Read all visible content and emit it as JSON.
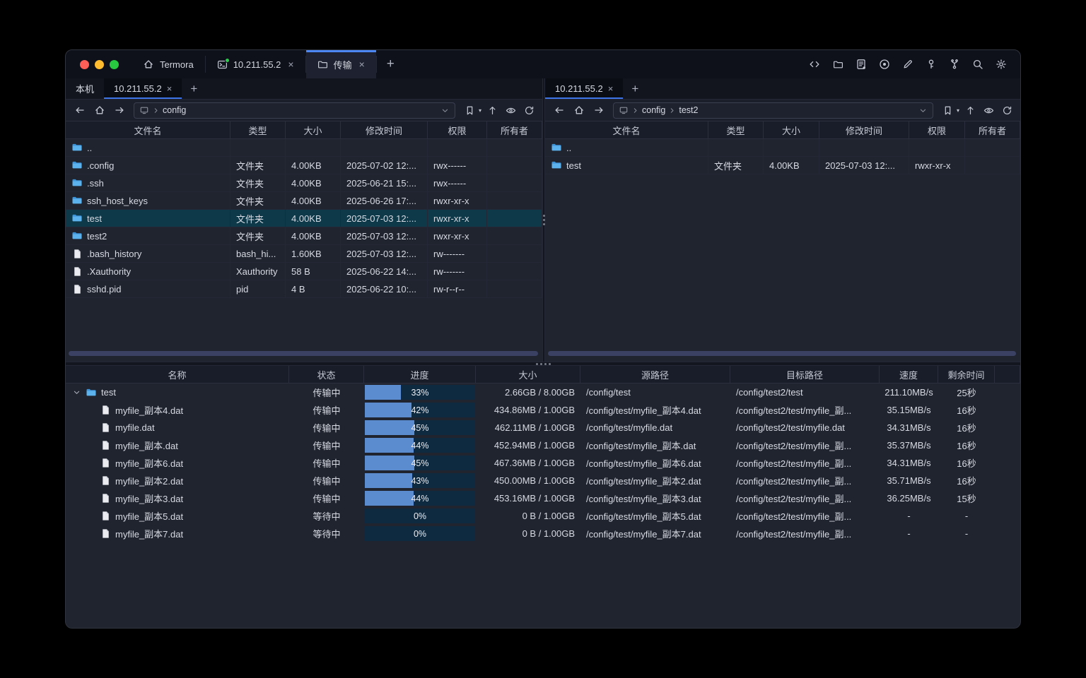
{
  "glyphs": {
    "close": "×",
    "plus": "+",
    "caret": "▾"
  },
  "colors": {
    "accent": "#3d74e8",
    "active_tab_top": "#4b86f2",
    "selected_row": "#0e3949",
    "progress_fill": "#5b8cd0",
    "progress_track": "#0d2a40",
    "traffic_red": "#ff5f57",
    "traffic_yellow": "#febc2e",
    "traffic_green": "#28c840",
    "folder_icon": "#4aa3e0"
  },
  "titlebar": {
    "app": {
      "icon": "home",
      "label": "Termora"
    },
    "session_tab": {
      "icon": "terminal",
      "label": "10.211.55.2"
    },
    "transfer_tab": {
      "icon": "folder-o",
      "label": "传输"
    },
    "actions": [
      "code",
      "folder-o",
      "journal",
      "record",
      "pencil",
      "key",
      "fork",
      "search",
      "gear"
    ]
  },
  "panels": [
    {
      "tabs": [
        {
          "label": "本机",
          "active": false,
          "closable": false
        },
        {
          "label": "10.211.55.2",
          "active": true,
          "closable": true
        }
      ],
      "breadcrumb": [
        "config"
      ],
      "headers": [
        "文件名",
        "类型",
        "大小",
        "修改时间",
        "权限",
        "所有者"
      ],
      "rows": [
        {
          "icon": "folder",
          "name": "..",
          "type": "",
          "size": "",
          "mtime": "",
          "perm": "",
          "owner": ""
        },
        {
          "icon": "folder",
          "name": ".config",
          "type": "文件夹",
          "size": "4.00KB",
          "mtime": "2025-07-02 12:...",
          "perm": "rwx------",
          "owner": ""
        },
        {
          "icon": "folder",
          "name": ".ssh",
          "type": "文件夹",
          "size": "4.00KB",
          "mtime": "2025-06-21 15:...",
          "perm": "rwx------",
          "owner": ""
        },
        {
          "icon": "folder",
          "name": "ssh_host_keys",
          "type": "文件夹",
          "size": "4.00KB",
          "mtime": "2025-06-26 17:...",
          "perm": "rwxr-xr-x",
          "owner": ""
        },
        {
          "icon": "folder",
          "name": "test",
          "type": "文件夹",
          "size": "4.00KB",
          "mtime": "2025-07-03 12:...",
          "perm": "rwxr-xr-x",
          "owner": "",
          "selected": true
        },
        {
          "icon": "folder",
          "name": "test2",
          "type": "文件夹",
          "size": "4.00KB",
          "mtime": "2025-07-03 12:...",
          "perm": "rwxr-xr-x",
          "owner": ""
        },
        {
          "icon": "file",
          "name": ".bash_history",
          "type": "bash_hi...",
          "size": "1.60KB",
          "mtime": "2025-07-03 12:...",
          "perm": "rw-------",
          "owner": ""
        },
        {
          "icon": "file",
          "name": ".Xauthority",
          "type": "Xauthority",
          "size": "58 B",
          "mtime": "2025-06-22 14:...",
          "perm": "rw-------",
          "owner": ""
        },
        {
          "icon": "file",
          "name": "sshd.pid",
          "type": "pid",
          "size": "4 B",
          "mtime": "2025-06-22 10:...",
          "perm": "rw-r--r--",
          "owner": ""
        }
      ]
    },
    {
      "tabs": [
        {
          "label": "10.211.55.2",
          "active": true,
          "closable": true
        }
      ],
      "breadcrumb": [
        "config",
        "test2"
      ],
      "headers": [
        "文件名",
        "类型",
        "大小",
        "修改时间",
        "权限",
        "所有者"
      ],
      "rows": [
        {
          "icon": "folder",
          "name": "..",
          "type": "",
          "size": "",
          "mtime": "",
          "perm": "",
          "owner": ""
        },
        {
          "icon": "folder",
          "name": "test",
          "type": "文件夹",
          "size": "4.00KB",
          "mtime": "2025-07-03 12:...",
          "perm": "rwxr-xr-x",
          "owner": ""
        }
      ]
    }
  ],
  "transfer": {
    "headers": [
      "名称",
      "状态",
      "进度",
      "大小",
      "源路径",
      "目标路径",
      "速度",
      "剩余时间"
    ],
    "rows": [
      {
        "icon": "folder",
        "indent": 0,
        "expander": true,
        "name": "test",
        "status": "传输中",
        "progress": 33,
        "progress_label": "33%",
        "size": "2.66GB / 8.00GB",
        "source": "/config/test",
        "target": "/config/test2/test",
        "speed": "211.10MB/s",
        "remaining": "25秒"
      },
      {
        "icon": "file",
        "indent": 1,
        "name": "myfile_副本4.dat",
        "status": "传输中",
        "progress": 42,
        "progress_label": "42%",
        "size": "434.86MB / 1.00GB",
        "source": "/config/test/myfile_副本4.dat",
        "target": "/config/test2/test/myfile_副...",
        "speed": "35.15MB/s",
        "remaining": "16秒"
      },
      {
        "icon": "file",
        "indent": 1,
        "name": "myfile.dat",
        "status": "传输中",
        "progress": 45,
        "progress_label": "45%",
        "size": "462.11MB / 1.00GB",
        "source": "/config/test/myfile.dat",
        "target": "/config/test2/test/myfile.dat",
        "speed": "34.31MB/s",
        "remaining": "16秒"
      },
      {
        "icon": "file",
        "indent": 1,
        "name": "myfile_副本.dat",
        "status": "传输中",
        "progress": 44,
        "progress_label": "44%",
        "size": "452.94MB / 1.00GB",
        "source": "/config/test/myfile_副本.dat",
        "target": "/config/test2/test/myfile_副...",
        "speed": "35.37MB/s",
        "remaining": "16秒"
      },
      {
        "icon": "file",
        "indent": 1,
        "name": "myfile_副本6.dat",
        "status": "传输中",
        "progress": 45,
        "progress_label": "45%",
        "size": "467.36MB / 1.00GB",
        "source": "/config/test/myfile_副本6.dat",
        "target": "/config/test2/test/myfile_副...",
        "speed": "34.31MB/s",
        "remaining": "16秒"
      },
      {
        "icon": "file",
        "indent": 1,
        "name": "myfile_副本2.dat",
        "status": "传输中",
        "progress": 43,
        "progress_label": "43%",
        "size": "450.00MB / 1.00GB",
        "source": "/config/test/myfile_副本2.dat",
        "target": "/config/test2/test/myfile_副...",
        "speed": "35.71MB/s",
        "remaining": "16秒"
      },
      {
        "icon": "file",
        "indent": 1,
        "name": "myfile_副本3.dat",
        "status": "传输中",
        "progress": 44,
        "progress_label": "44%",
        "size": "453.16MB / 1.00GB",
        "source": "/config/test/myfile_副本3.dat",
        "target": "/config/test2/test/myfile_副...",
        "speed": "36.25MB/s",
        "remaining": "15秒"
      },
      {
        "icon": "file",
        "indent": 1,
        "name": "myfile_副本5.dat",
        "status": "等待中",
        "progress": 0,
        "progress_label": "0%",
        "size": "0 B / 1.00GB",
        "source": "/config/test/myfile_副本5.dat",
        "target": "/config/test2/test/myfile_副...",
        "speed": "-",
        "remaining": "-"
      },
      {
        "icon": "file",
        "indent": 1,
        "name": "myfile_副本7.dat",
        "status": "等待中",
        "progress": 0,
        "progress_label": "0%",
        "size": "0 B / 1.00GB",
        "source": "/config/test/myfile_副本7.dat",
        "target": "/config/test2/test/myfile_副...",
        "speed": "-",
        "remaining": "-"
      }
    ]
  }
}
